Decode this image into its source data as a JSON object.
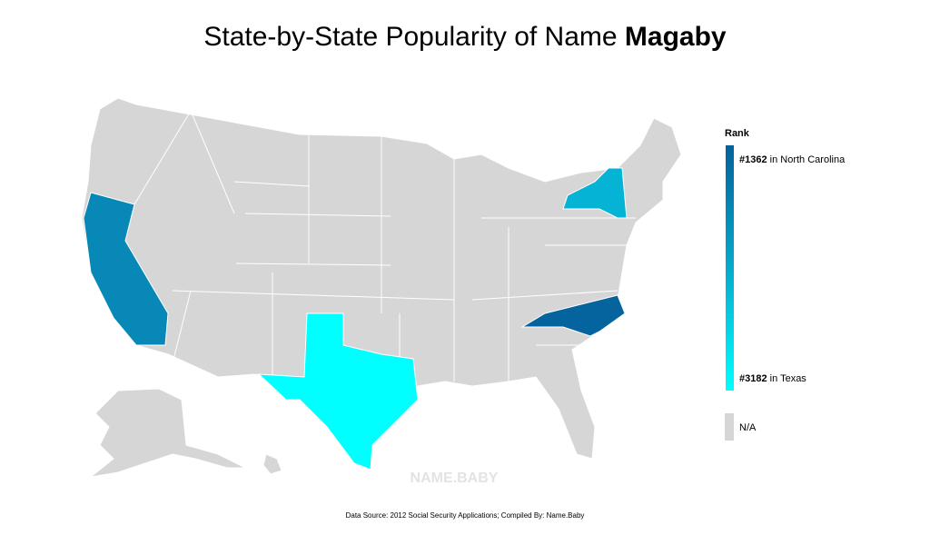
{
  "header": {
    "title": "State-by-State Popularity of Name ",
    "name": "Magaby"
  },
  "legend": {
    "title": "Rank",
    "top": {
      "rank": "#1362",
      "state": "in North Carolina"
    },
    "bottom": {
      "rank": "#3182",
      "state": "in Texas"
    },
    "na": "N/A"
  },
  "watermark": "NAME.BABY",
  "footer": {
    "source": "Data Source: 2012 Social Security Applications; Compiled By: Name.Baby"
  }
}
